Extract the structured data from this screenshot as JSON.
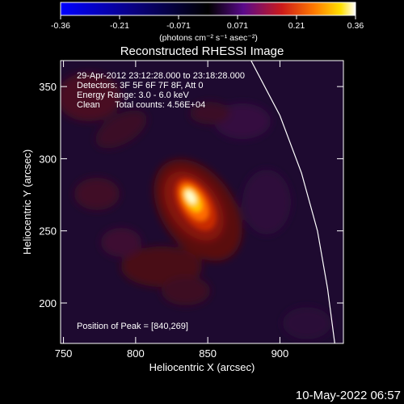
{
  "chart_data": {
    "type": "heatmap",
    "title": "Reconstructed RHESSI Image",
    "xlabel": "Heliocentric X (arcsec)",
    "ylabel": "Heliocentric Y (arcsec)",
    "xlim": [
      748,
      944
    ],
    "ylim": [
      172,
      368
    ],
    "xticks": [
      750,
      800,
      850,
      900
    ],
    "yticks": [
      200,
      250,
      300,
      350
    ],
    "colorbar": {
      "label": "(photons cm⁻² s⁻¹ asec⁻²)",
      "range": [
        -0.36,
        0.36
      ],
      "ticks": [
        "-0.36",
        "-0.21",
        "-0.071",
        "0.071",
        "0.21",
        "0.36"
      ],
      "colormap": "black-purple-red-orange-yellow-white (negative: blue)"
    },
    "annotations": {
      "time_range": "29-Apr-2012 23:12:28.000 to 23:18:28.000",
      "detectors": "Detectors: 3F 5F 6F 7F 8F, Att 0",
      "energy": "Energy Range: 3.0 - 6.0 keV",
      "algorithm": "Clean",
      "counts": "Total counts: 4.56E+04",
      "peak": "Position of Peak = [840,269]"
    },
    "peak": [
      840,
      269
    ],
    "peak_value": 0.36,
    "limb_curve": [
      [
        880,
        368
      ],
      [
        900,
        330
      ],
      [
        915,
        290
      ],
      [
        926,
        250
      ],
      [
        933,
        210
      ],
      [
        938,
        172
      ]
    ]
  },
  "footer": {
    "date": "10-May-2022 06:57"
  }
}
